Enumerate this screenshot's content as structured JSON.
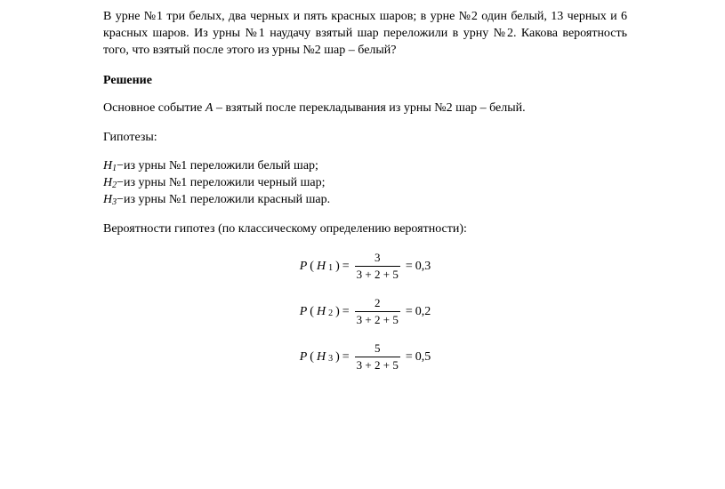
{
  "problem": "В урне №1 три белых, два черных и пять красных шаров; в урне №2 один белый, 13 черных и 6 красных шаров. Из урны №1 наудачу взятый шар переложили в урну №2. Какова вероятность того, что взятый после этого из урны №2 шар – белый?",
  "heading": "Решение",
  "main_event_pre": "Основное событие ",
  "main_event_var": "A",
  "main_event_post": " – взятый после перекладывания из урны №2 шар – белый.",
  "hypotheses_label": "Гипотезы:",
  "hyp": [
    {
      "var": "H",
      "idx": "1",
      "dash": " − ",
      "text": "из урны №1 переложили белый шар;"
    },
    {
      "var": "H",
      "idx": "2",
      "dash": " − ",
      "text": "из урны №1 переложили черный шар;"
    },
    {
      "var": "H",
      "idx": "3",
      "dash": " − ",
      "text": "из урны №1 переложили красный шар."
    }
  ],
  "prob_label": "Вероятности гипотез (по классическому определению вероятности):",
  "formulas": [
    {
      "lhs_P": "P",
      "lhs_open": "(",
      "lhs_H": "H",
      "lhs_idx": "1",
      "lhs_close": ")",
      "eq1": " = ",
      "num": "3",
      "den": "3 + 2 + 5",
      "eq2": " = ",
      "res": "0,3"
    },
    {
      "lhs_P": "P",
      "lhs_open": "(",
      "lhs_H": "H",
      "lhs_idx": "2",
      "lhs_close": ")",
      "eq1": " = ",
      "num": "2",
      "den": "3 + 2 + 5",
      "eq2": " = ",
      "res": "0,2"
    },
    {
      "lhs_P": "P",
      "lhs_open": "(",
      "lhs_H": "H",
      "lhs_idx": "3",
      "lhs_close": ")",
      "eq1": " = ",
      "num": "5",
      "den": "3 + 2 + 5",
      "eq2": " = ",
      "res": "0,5"
    }
  ],
  "colors": {
    "text": "#000000",
    "background": "#ffffff"
  },
  "fonts": {
    "body_family": "Times New Roman",
    "math_family": "Cambria Math",
    "body_size_pt": 11,
    "sub_size_pt": 8
  }
}
